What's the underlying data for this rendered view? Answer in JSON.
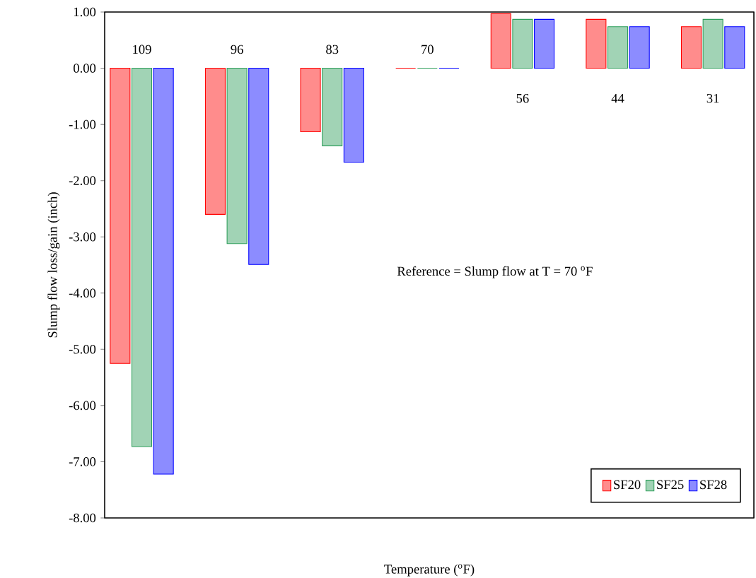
{
  "chart_data": {
    "type": "bar",
    "xlabel": "Temperature ($^{o}$F)",
    "ylabel": "Slump flow loss/gain (inch)",
    "categories": [
      "109",
      "96",
      "83",
      "70",
      "56",
      "44",
      "31"
    ],
    "series": [
      {
        "name": "SF20",
        "color": "#ff0000",
        "values": [
          -5.25,
          -2.6,
          -1.13,
          0,
          0.97,
          0.87,
          0.74
        ]
      },
      {
        "name": "SF25",
        "color": "#2e9e5b",
        "values": [
          -6.73,
          -3.12,
          -1.38,
          0,
          0.87,
          0.74,
          0.87
        ]
      },
      {
        "name": "SF28",
        "color": "#0000ff",
        "values": [
          -7.22,
          -3.49,
          -1.67,
          0,
          0.87,
          0.74,
          0.74
        ]
      }
    ],
    "ylim": [
      -8,
      1
    ],
    "yticks": [
      {
        "value": -8,
        "label": "-8.00"
      },
      {
        "value": -7,
        "label": "-7.00"
      },
      {
        "value": -6,
        "label": "-6.00"
      },
      {
        "value": -5,
        "label": "-5.00"
      },
      {
        "value": -4,
        "label": "-4.00"
      },
      {
        "value": -3,
        "label": "-3.00"
      },
      {
        "value": -2,
        "label": "-2.00"
      },
      {
        "value": -1,
        "label": "-1.00"
      },
      {
        "value": 0,
        "label": "0.00"
      },
      {
        "value": 1,
        "label": "1.00"
      }
    ],
    "annotations": [
      "Reference = Slump flow at T = 70 $^{o}$F"
    ],
    "grid": false,
    "legend": "bottom right"
  }
}
